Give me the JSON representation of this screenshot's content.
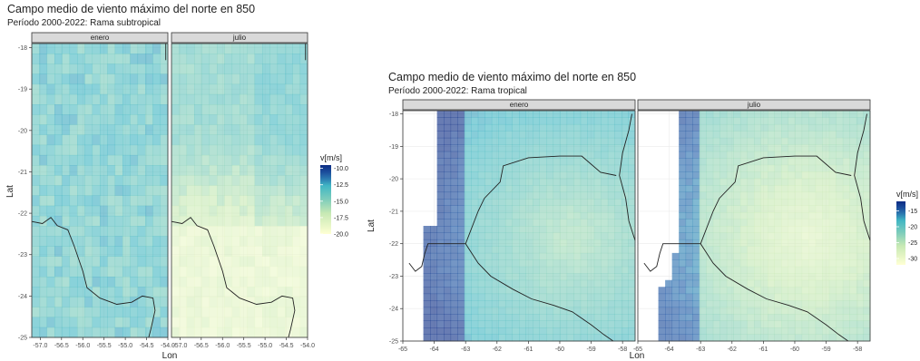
{
  "chart_data": [
    {
      "type": "heatmap",
      "title": "Campo medio de viento máximo del norte en 850",
      "subtitle": "Período 2000-2022: Rama subtropical",
      "xlabel": "Lon",
      "ylabel": "Lat",
      "panels": [
        "enero",
        "julio"
      ],
      "xlim": [
        -57.2,
        -54.0
      ],
      "ylim": [
        -25.0,
        -17.9
      ],
      "x_ticks": [
        -57.0,
        -56.5,
        -56.0,
        -55.5,
        -55.0,
        -54.5,
        -54.0
      ],
      "x_tick_labels": [
        "-57.0",
        "-56.5",
        "-56.0",
        "-55.5",
        "-55.0",
        "-54.5",
        "-54.0"
      ],
      "y_ticks": [
        -18,
        -19,
        -20,
        -21,
        -22,
        -23,
        -24,
        -25
      ],
      "colorbar": {
        "title": "v[m/s]",
        "ticks": [
          -10.0,
          -12.5,
          -15.0,
          -17.5,
          -20.0
        ],
        "tick_labels": [
          "-10.0",
          "-12.5",
          "-15.0",
          "-17.5",
          "-20.0"
        ],
        "range": [
          -20.0,
          -9.5
        ]
      },
      "grid": true
    },
    {
      "type": "heatmap",
      "title": "Campo medio de viento máximo del norte en 850",
      "subtitle": "Período 2000-2022: Rama tropical",
      "xlabel": "Lon",
      "ylabel": "Lat",
      "panels": [
        "enero",
        "julio"
      ],
      "xlim": [
        -65.0,
        -57.6
      ],
      "ylim": [
        -25.0,
        -17.9
      ],
      "x_ticks": [
        -65,
        -64,
        -63,
        -62,
        -61,
        -60,
        -59,
        -58
      ],
      "y_ticks": [
        -18,
        -19,
        -20,
        -21,
        -22,
        -23,
        -24,
        -25
      ],
      "colorbar": {
        "title": "v[m/s]",
        "ticks": [
          -15,
          -20,
          -25,
          -30
        ],
        "tick_labels": [
          "-15",
          "-20",
          "-25",
          "-30"
        ],
        "range": [
          -32,
          -12
        ]
      },
      "grid": true
    }
  ]
}
